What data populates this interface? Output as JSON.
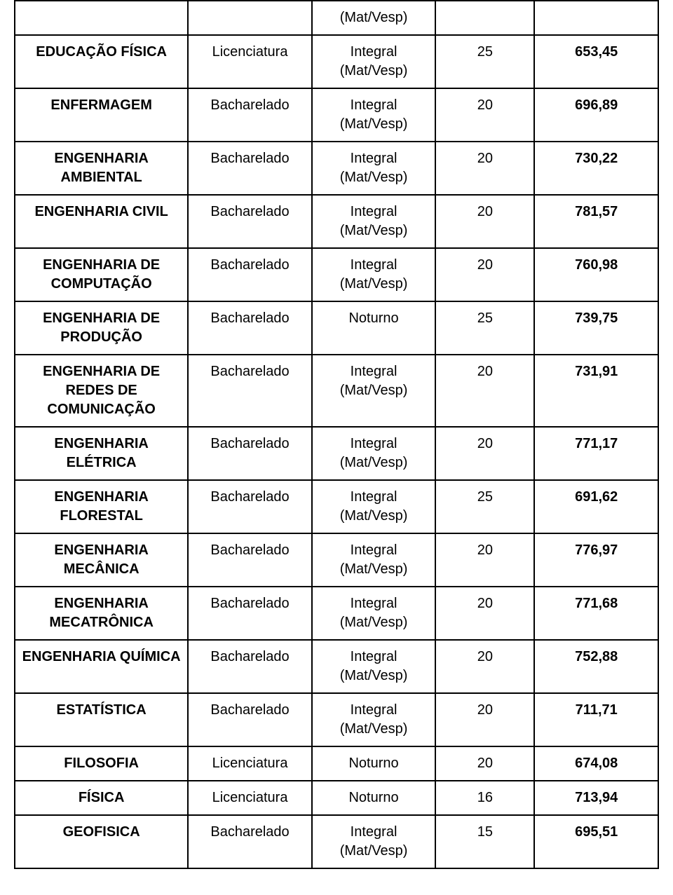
{
  "table": {
    "border_color": "#000000",
    "background_color": "#ffffff",
    "font_family": "Arial",
    "font_size_pt": 15,
    "columns": [
      {
        "key": "course",
        "width_pct": 26,
        "bold": true,
        "align": "center"
      },
      {
        "key": "degree",
        "width_pct": 18,
        "bold": false,
        "align": "center"
      },
      {
        "key": "shift",
        "width_pct": 18,
        "bold": false,
        "align": "center"
      },
      {
        "key": "vac",
        "width_pct": 14,
        "bold": false,
        "align": "center"
      },
      {
        "key": "score",
        "width_pct": 18,
        "bold": true,
        "align": "center"
      }
    ],
    "rows": [
      {
        "course": "",
        "degree": "",
        "shift": "(Mat/Vesp)",
        "vac": "",
        "score": ""
      },
      {
        "course": "EDUCAÇÃO FÍSICA",
        "degree": "Licenciatura",
        "shift": "Integral",
        "shift_sub": "(Mat/Vesp)",
        "vac": "25",
        "score": "653,45"
      },
      {
        "course": "ENFERMAGEM",
        "degree": "Bacharelado",
        "shift": "Integral",
        "shift_sub": "(Mat/Vesp)",
        "vac": "20",
        "score": "696,89"
      },
      {
        "course": "ENGENHARIA AMBIENTAL",
        "degree": "Bacharelado",
        "shift": "Integral",
        "shift_sub": "(Mat/Vesp)",
        "vac": "20",
        "score": "730,22"
      },
      {
        "course": "ENGENHARIA CIVIL",
        "degree": "Bacharelado",
        "shift": "Integral",
        "shift_sub": "(Mat/Vesp)",
        "vac": "20",
        "score": "781,57"
      },
      {
        "course": "ENGENHARIA DE COMPUTAÇÃO",
        "degree": "Bacharelado",
        "shift": "Integral",
        "shift_sub": "(Mat/Vesp)",
        "vac": "20",
        "score": "760,98"
      },
      {
        "course": "ENGENHARIA DE PRODUÇÃO",
        "degree": "Bacharelado",
        "shift": "Noturno",
        "vac": "25",
        "score": "739,75"
      },
      {
        "course": "ENGENHARIA DE REDES DE COMUNICAÇÃO",
        "degree": "Bacharelado",
        "shift": "Integral",
        "shift_sub": "(Mat/Vesp)",
        "vac": "20",
        "score": "731,91"
      },
      {
        "course": "ENGENHARIA ELÉTRICA",
        "degree": "Bacharelado",
        "shift": "Integral",
        "shift_sub": "(Mat/Vesp)",
        "vac": "20",
        "score": "771,17"
      },
      {
        "course": "ENGENHARIA FLORESTAL",
        "degree": "Bacharelado",
        "shift": "Integral",
        "shift_sub": "(Mat/Vesp)",
        "vac": "25",
        "score": "691,62"
      },
      {
        "course": "ENGENHARIA MECÂNICA",
        "degree": "Bacharelado",
        "shift": "Integral",
        "shift_sub": "(Mat/Vesp)",
        "vac": "20",
        "score": "776,97"
      },
      {
        "course": "ENGENHARIA MECATRÔNICA",
        "degree": "Bacharelado",
        "shift": "Integral",
        "shift_sub": "(Mat/Vesp)",
        "vac": "20",
        "score": "771,68"
      },
      {
        "course": "ENGENHARIA QUÍMICA",
        "degree": "Bacharelado",
        "shift": "Integral",
        "shift_sub": "(Mat/Vesp)",
        "vac": "20",
        "score": "752,88"
      },
      {
        "course": "ESTATÍSTICA",
        "degree": "Bacharelado",
        "shift": "Integral",
        "shift_sub": "(Mat/Vesp)",
        "vac": "20",
        "score": "711,71"
      },
      {
        "course": "FILOSOFIA",
        "degree": "Licenciatura",
        "shift": "Noturno",
        "vac": "20",
        "score": "674,08"
      },
      {
        "course": "FÍSICA",
        "degree": "Licenciatura",
        "shift": "Noturno",
        "vac": "16",
        "score": "713,94"
      },
      {
        "course": "GEOFISICA",
        "degree": "Bacharelado",
        "shift": "Integral",
        "shift_sub": "(Mat/Vesp)",
        "vac": "15",
        "score": "695,51"
      }
    ]
  }
}
